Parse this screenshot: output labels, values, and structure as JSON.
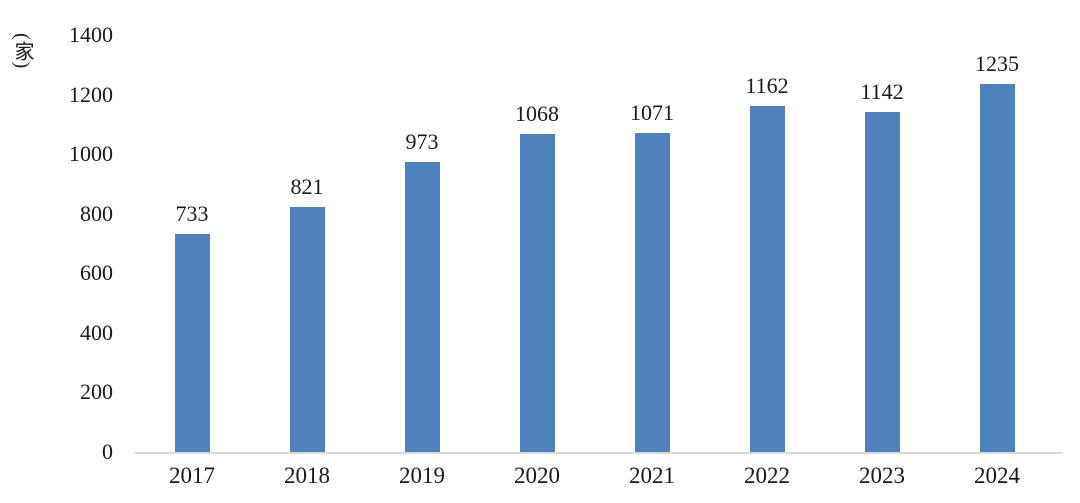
{
  "chart_data": {
    "type": "bar",
    "categories": [
      "2017",
      "2018",
      "2019",
      "2020",
      "2021",
      "2022",
      "2023",
      "2024"
    ],
    "values": [
      733,
      821,
      973,
      1068,
      1071,
      1162,
      1142,
      1235
    ],
    "title": "",
    "xlabel": "",
    "ylabel": "(家)",
    "ylim": [
      0,
      1400
    ],
    "yticks": [
      0,
      200,
      400,
      600,
      800,
      1000,
      1200,
      1400
    ],
    "grid": "off",
    "legend_position": "none",
    "data_labels": "above-bars",
    "colors": {
      "bar": "#4f81bd",
      "axis_line": "#d9d9d9",
      "text": "#1a1a1a",
      "background": "#ffffff"
    }
  }
}
